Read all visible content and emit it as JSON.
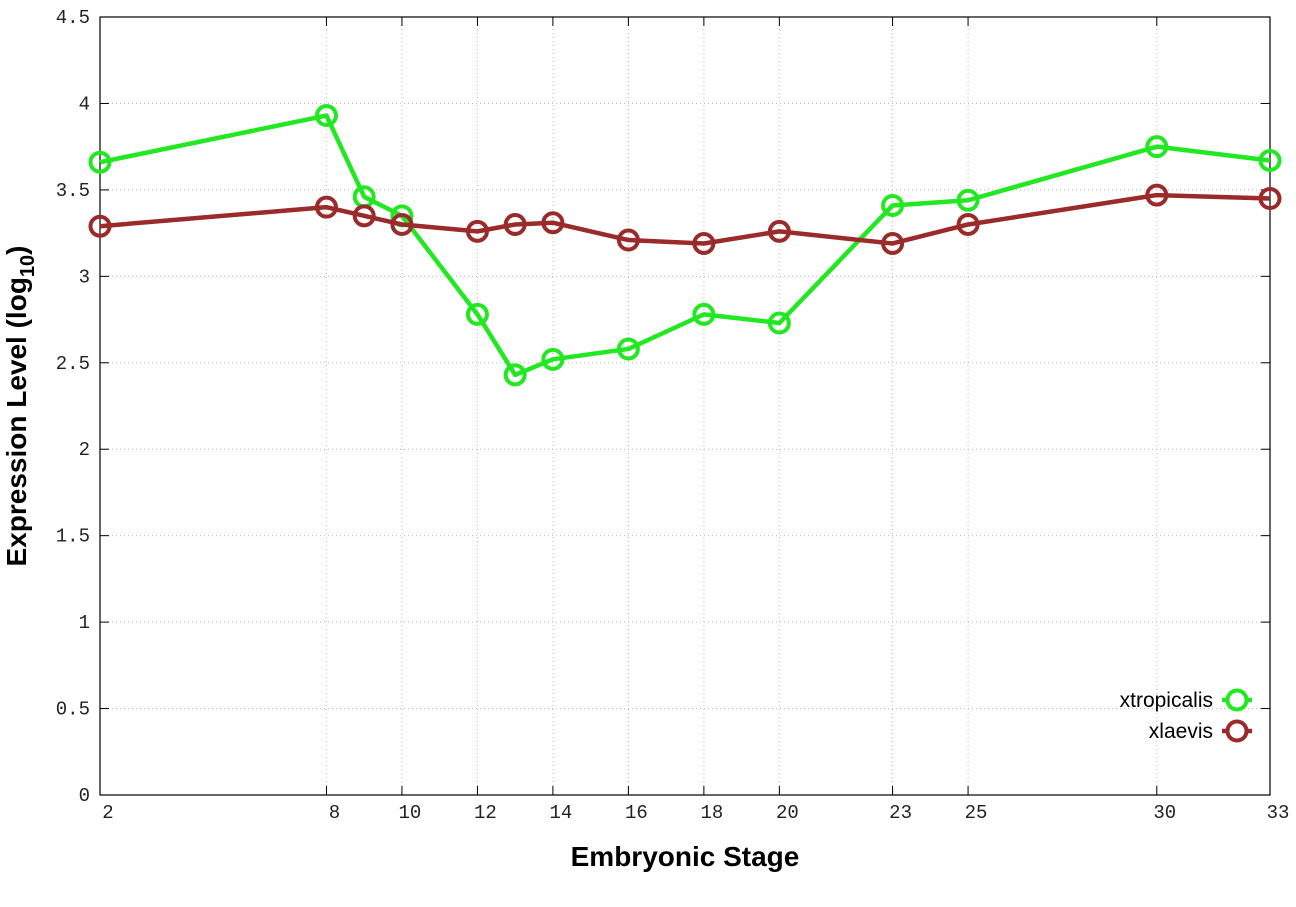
{
  "chart_data": {
    "type": "line",
    "x_label": "Embryonic Stage",
    "y_label": {
      "text": "Expression Level (log",
      "subscript": "10",
      "suffix": ")"
    },
    "x": [
      2,
      8,
      9,
      10,
      12,
      13,
      14,
      16,
      18,
      20,
      23,
      25,
      30,
      33
    ],
    "series": [
      {
        "name": "xtropicalis",
        "color": "#22e822",
        "values": [
          3.66,
          3.93,
          3.46,
          3.35,
          2.78,
          2.43,
          2.52,
          2.58,
          2.78,
          2.73,
          3.41,
          3.44,
          3.75,
          3.67
        ]
      },
      {
        "name": "xlaevis",
        "color": "#9b2a2a",
        "values": [
          3.29,
          3.4,
          3.35,
          3.3,
          3.26,
          3.3,
          3.31,
          3.21,
          3.19,
          3.26,
          3.19,
          3.3,
          3.47,
          3.45
        ]
      }
    ],
    "xlim": [
      2,
      33
    ],
    "xticks": [
      2,
      8,
      10,
      12,
      14,
      16,
      18,
      20,
      23,
      25,
      30,
      33
    ],
    "ylim": [
      0,
      4.5
    ],
    "yticks": [
      0,
      0.5,
      1,
      1.5,
      2,
      2.5,
      3,
      3.5,
      4,
      4.5
    ],
    "grid": true,
    "legend": "lower right",
    "markers": true
  }
}
